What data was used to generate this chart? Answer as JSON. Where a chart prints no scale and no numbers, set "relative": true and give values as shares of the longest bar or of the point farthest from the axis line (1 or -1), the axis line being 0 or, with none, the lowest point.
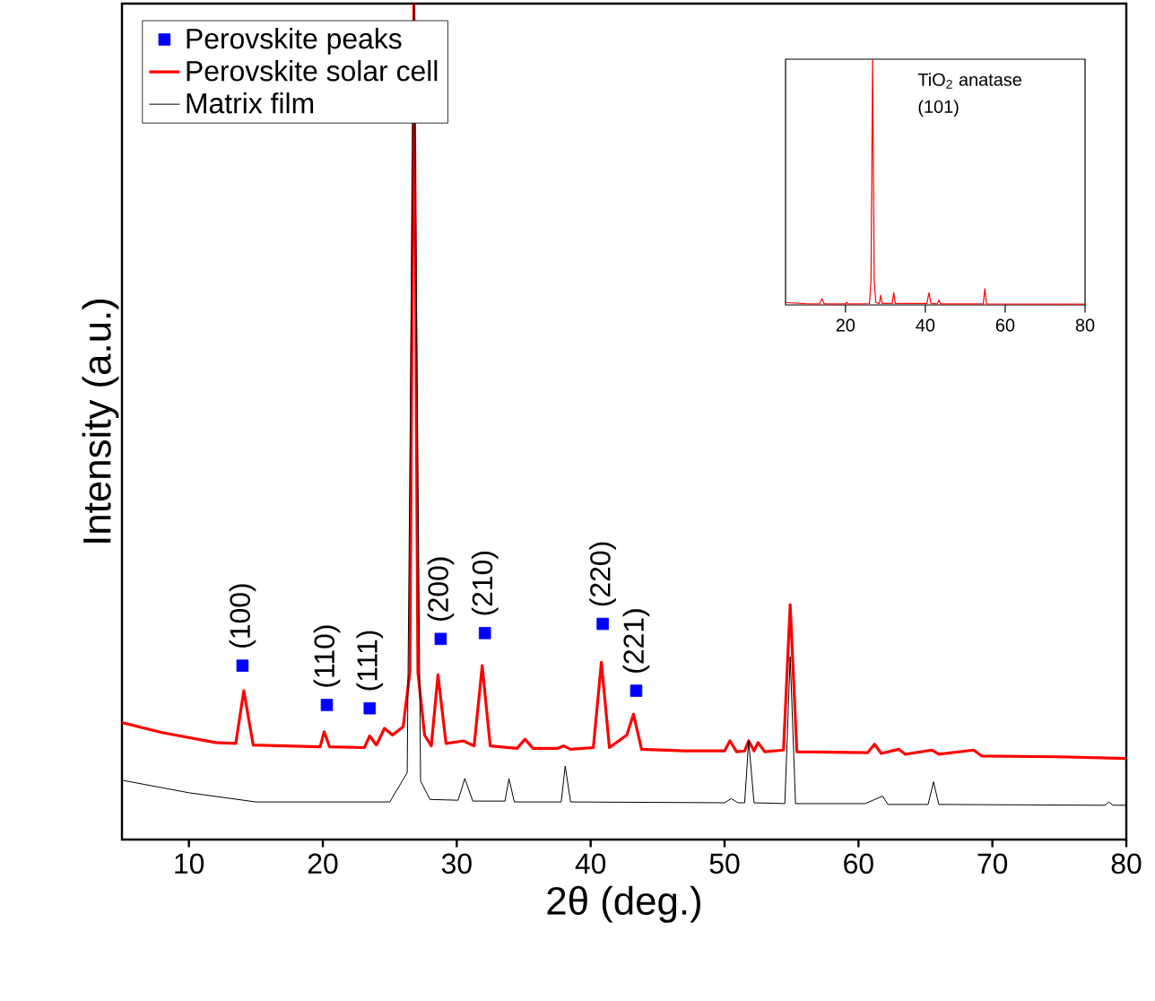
{
  "chart_data": [
    {
      "type": "line",
      "relative": true,
      "xlabel": "2θ (deg.)",
      "ylabel": "Intensity (a.u.)",
      "xlim": [
        5,
        80
      ],
      "xticks": [
        10,
        20,
        30,
        40,
        50,
        60,
        70,
        80
      ],
      "tick_labels": "x",
      "legend": "top left",
      "series": [
        {
          "name": "Perovskite peaks",
          "type": "scatter",
          "marker": "square",
          "color": "#0000ff",
          "x": [
            14.0,
            20.3,
            23.5,
            28.8,
            32.1,
            40.9,
            43.4
          ],
          "values": [
            0.208,
            0.161,
            0.157,
            0.24,
            0.247,
            0.258,
            0.178
          ]
        },
        {
          "name": "Perovskite solar cell",
          "color": "#ff0000",
          "x": [
            5,
            8,
            12,
            13.5,
            14.1,
            14.8,
            19.8,
            20.1,
            20.5,
            23.1,
            23.5,
            24.0,
            24.6,
            25.2,
            26.0,
            26.5,
            26.8,
            27.1,
            27.6,
            28.1,
            28.6,
            29.2,
            30.5,
            31.3,
            31.9,
            32.5,
            34.5,
            35.1,
            35.7,
            37.5,
            38.0,
            38.5,
            40.2,
            40.8,
            41.4,
            42.7,
            43.2,
            43.8,
            47,
            50.0,
            50.4,
            50.9,
            51.5,
            51.8,
            52.2,
            52.5,
            53.0,
            54.4,
            54.9,
            55.4,
            60.7,
            61.2,
            61.7,
            63.0,
            63.5,
            65.5,
            66.0,
            68.6,
            69.2,
            75,
            80
          ],
          "values": [
            0.14,
            0.128,
            0.116,
            0.115,
            0.178,
            0.113,
            0.111,
            0.129,
            0.111,
            0.11,
            0.124,
            0.113,
            0.133,
            0.125,
            0.135,
            0.2,
            1.0,
            0.2,
            0.125,
            0.112,
            0.197,
            0.115,
            0.118,
            0.112,
            0.208,
            0.112,
            0.109,
            0.12,
            0.109,
            0.109,
            0.112,
            0.108,
            0.11,
            0.212,
            0.11,
            0.125,
            0.15,
            0.108,
            0.106,
            0.106,
            0.118,
            0.105,
            0.106,
            0.118,
            0.106,
            0.116,
            0.105,
            0.107,
            0.281,
            0.105,
            0.104,
            0.114,
            0.103,
            0.108,
            0.102,
            0.107,
            0.102,
            0.107,
            0.1,
            0.099,
            0.097
          ]
        },
        {
          "name": "Matrix film",
          "color": "#000000",
          "x": [
            5,
            10,
            15,
            25,
            26.3,
            26.8,
            27.3,
            28,
            30.1,
            30.6,
            31.2,
            33.6,
            33.9,
            34.3,
            37.8,
            38.1,
            38.5,
            50.0,
            50.5,
            51.0,
            51.5,
            51.8,
            52.2,
            54.5,
            54.9,
            55.3,
            60.5,
            61.8,
            62.2,
            65.2,
            65.6,
            66.0,
            78.4,
            78.7,
            79.0,
            80
          ],
          "values": [
            0.071,
            0.056,
            0.045,
            0.045,
            0.08,
            1.0,
            0.07,
            0.048,
            0.047,
            0.073,
            0.046,
            0.046,
            0.073,
            0.045,
            0.045,
            0.088,
            0.045,
            0.044,
            0.049,
            0.044,
            0.044,
            0.118,
            0.044,
            0.043,
            0.219,
            0.043,
            0.043,
            0.052,
            0.042,
            0.042,
            0.069,
            0.042,
            0.041,
            0.045,
            0.041,
            0.041
          ]
        }
      ],
      "annotations": [
        {
          "text": "(100)",
          "x": 14.0,
          "y": 0.208
        },
        {
          "text": "(110)",
          "x": 20.3,
          "y": 0.161
        },
        {
          "text": "(111)",
          "x": 23.5,
          "y": 0.157
        },
        {
          "text": "(200)",
          "x": 28.8,
          "y": 0.24
        },
        {
          "text": "(210)",
          "x": 32.1,
          "y": 0.247
        },
        {
          "text": "(220)",
          "x": 40.9,
          "y": 0.258
        },
        {
          "text": "(221)",
          "x": 43.4,
          "y": 0.178
        }
      ]
    },
    {
      "type": "line",
      "relative": true,
      "xlim": [
        5,
        80
      ],
      "xticks": [
        20,
        40,
        60,
        80
      ],
      "tick_labels": "x",
      "series": [
        {
          "color": "#ff0000",
          "x": [
            5,
            10,
            13.5,
            14.1,
            14.7,
            20,
            20.3,
            20.6,
            26,
            26.4,
            26.8,
            27.2,
            27.6,
            28.5,
            28.8,
            29.2,
            31.7,
            32.1,
            32.5,
            40.4,
            40.9,
            41.4,
            43.0,
            43.4,
            43.8,
            54.5,
            54.9,
            55.3,
            80
          ],
          "values": [
            0.01,
            0.005,
            0.004,
            0.026,
            0.004,
            0.004,
            0.012,
            0.004,
            0.005,
            0.1,
            1.0,
            0.1,
            0.01,
            0.006,
            0.04,
            0.006,
            0.006,
            0.05,
            0.006,
            0.006,
            0.05,
            0.006,
            0.004,
            0.02,
            0.004,
            0.004,
            0.066,
            0.004,
            0.003
          ]
        }
      ],
      "annotations": [
        "TiO$_{2}$ anatase",
        "(101)"
      ]
    }
  ]
}
